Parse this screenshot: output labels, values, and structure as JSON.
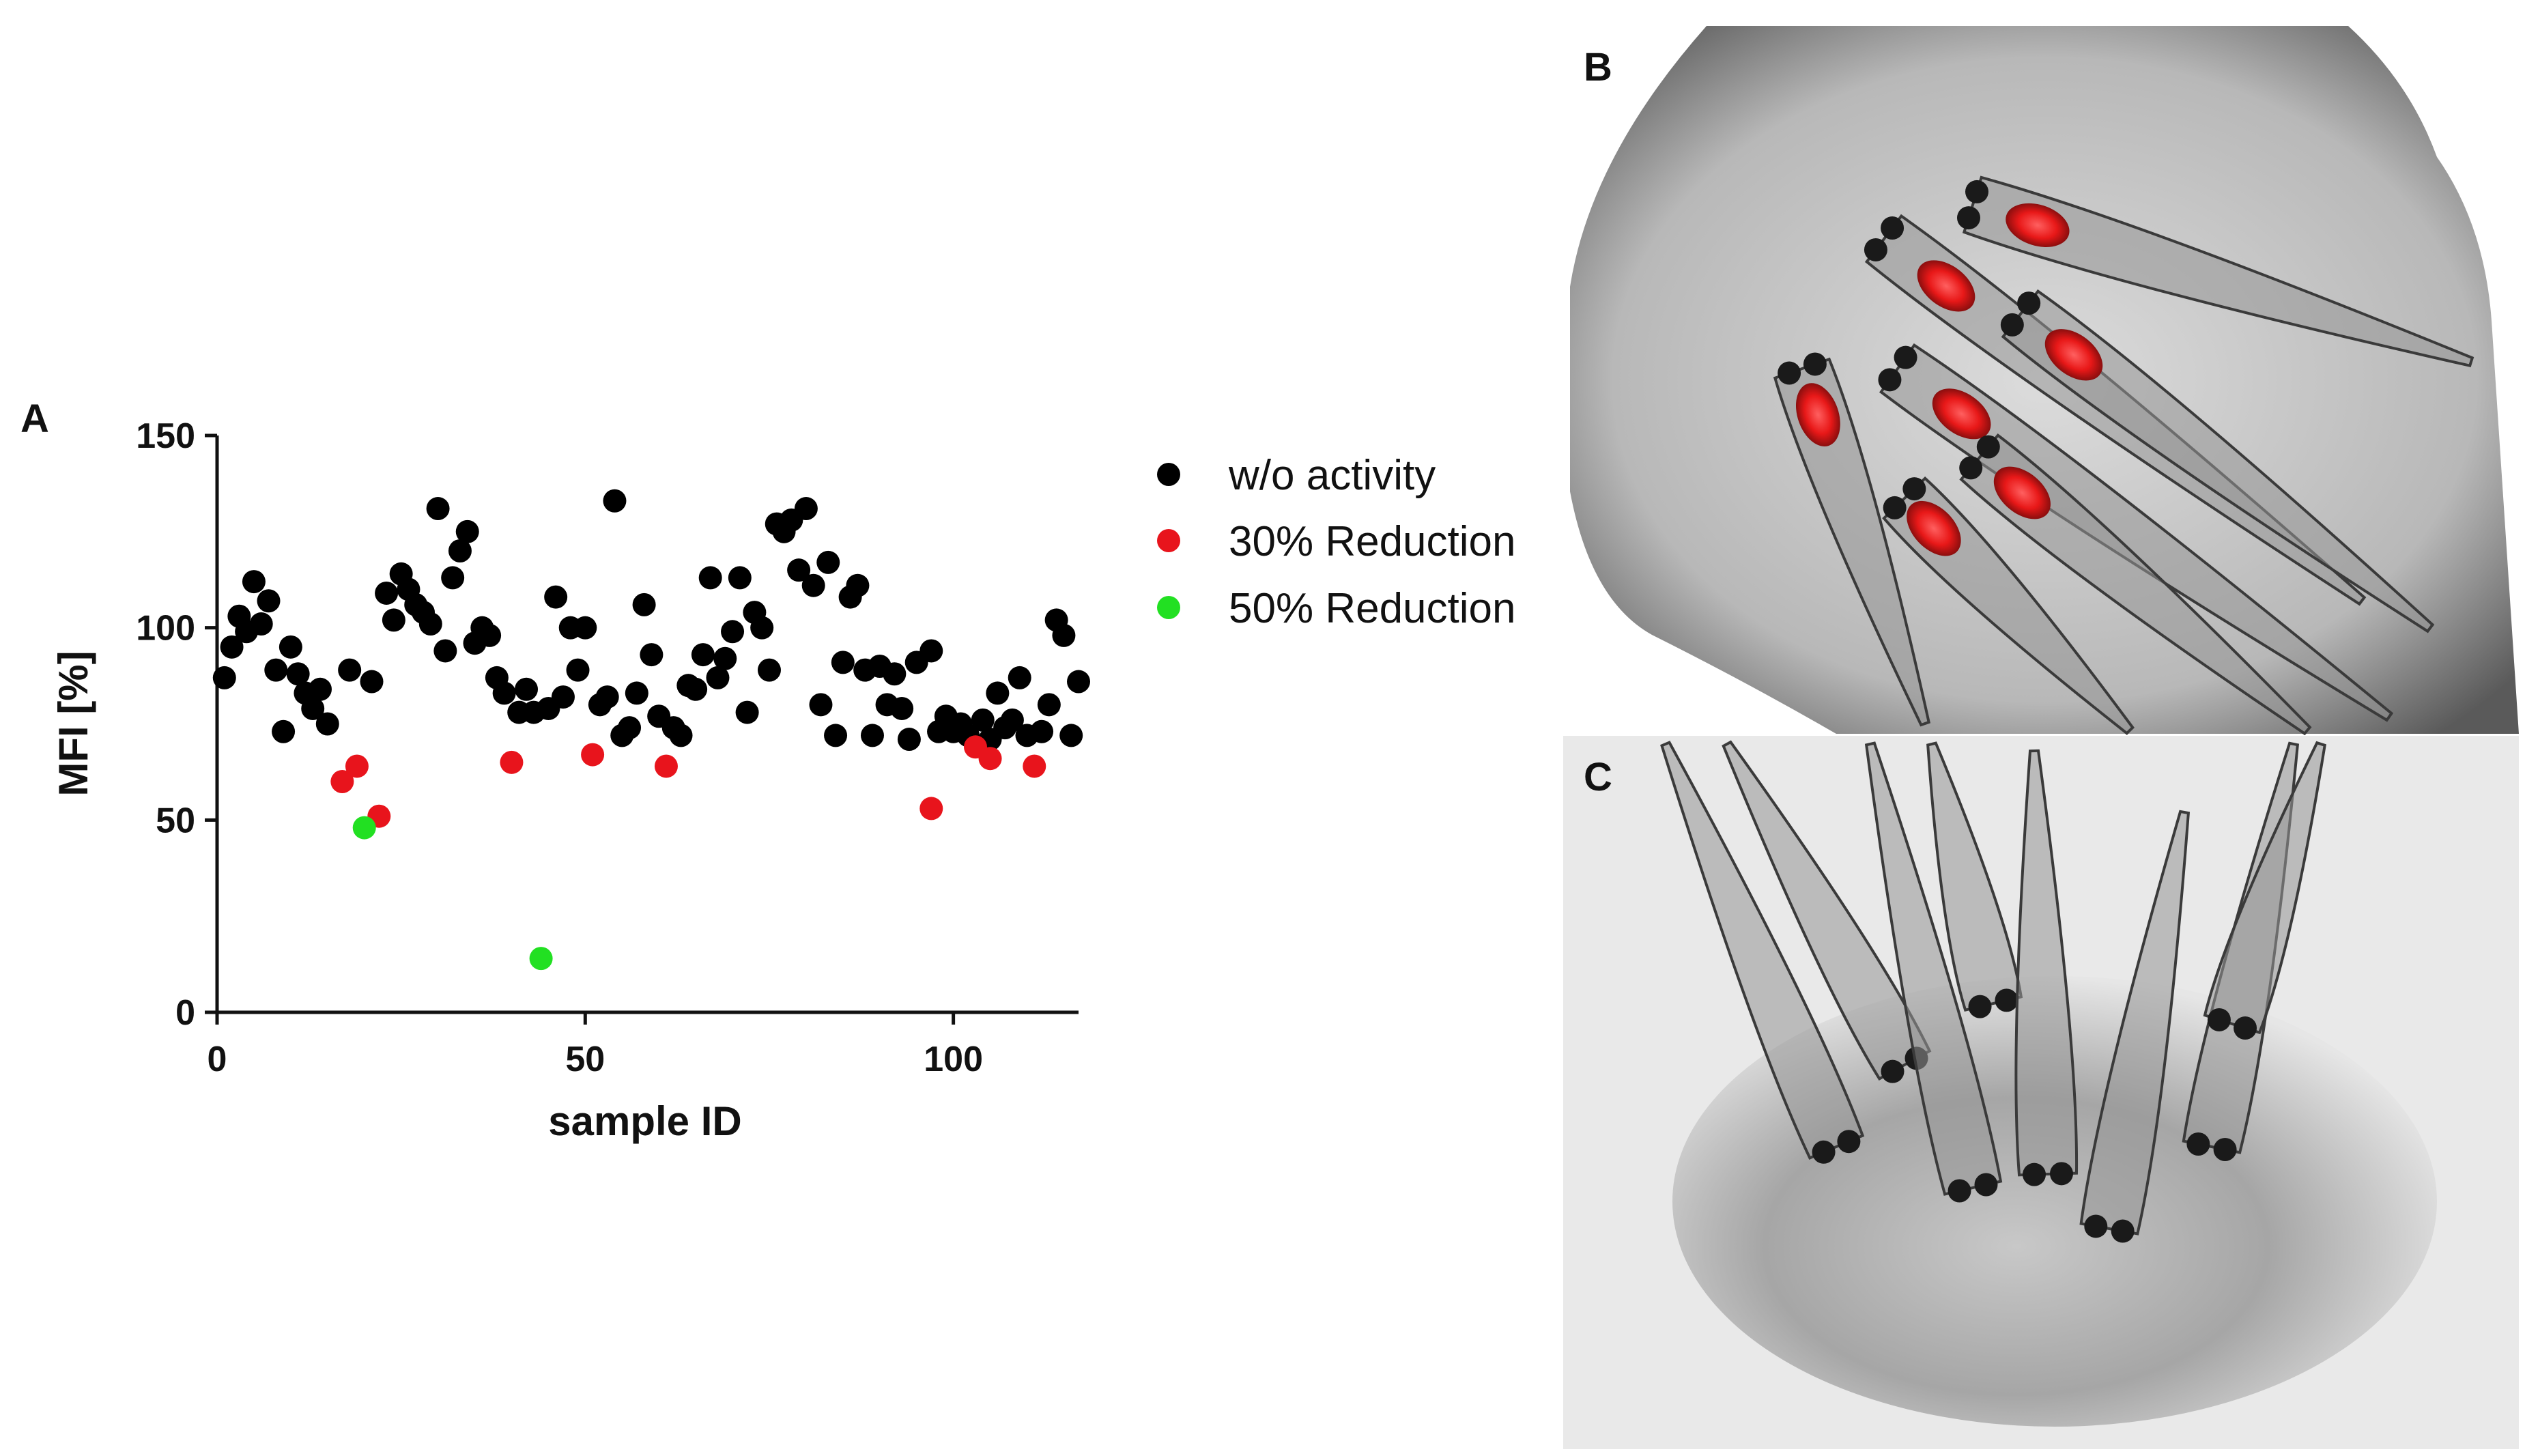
{
  "panels": {
    "a": "A",
    "b": "B",
    "c": "C"
  },
  "chart_data": {
    "type": "scatter",
    "xlabel": "sample ID",
    "ylabel": "MFI [%]",
    "xlim": [
      0,
      117
    ],
    "ylim": [
      0,
      150
    ],
    "x_ticks": [
      0,
      50,
      100
    ],
    "y_ticks": [
      0,
      50,
      100,
      150
    ],
    "grid": false,
    "legend_position": "right",
    "series": [
      {
        "name": "w/o activity",
        "color": "#000000",
        "points": [
          [
            1,
            87
          ],
          [
            2,
            95
          ],
          [
            3,
            103
          ],
          [
            4,
            99
          ],
          [
            5,
            112
          ],
          [
            6,
            101
          ],
          [
            7,
            107
          ],
          [
            8,
            89
          ],
          [
            9,
            73
          ],
          [
            10,
            95
          ],
          [
            11,
            88
          ],
          [
            12,
            83
          ],
          [
            13,
            79
          ],
          [
            14,
            84
          ],
          [
            15,
            75
          ],
          [
            18,
            89
          ],
          [
            21,
            86
          ],
          [
            23,
            109
          ],
          [
            24,
            102
          ],
          [
            25,
            114
          ],
          [
            26,
            110
          ],
          [
            27,
            106
          ],
          [
            28,
            104
          ],
          [
            29,
            101
          ],
          [
            30,
            131
          ],
          [
            31,
            94
          ],
          [
            32,
            113
          ],
          [
            33,
            120
          ],
          [
            34,
            125
          ],
          [
            35,
            96
          ],
          [
            36,
            100
          ],
          [
            37,
            98
          ],
          [
            38,
            87
          ],
          [
            39,
            83
          ],
          [
            41,
            78
          ],
          [
            42,
            84
          ],
          [
            43,
            78
          ],
          [
            45,
            79
          ],
          [
            46,
            108
          ],
          [
            47,
            82
          ],
          [
            48,
            100
          ],
          [
            49,
            89
          ],
          [
            50,
            100
          ],
          [
            52,
            80
          ],
          [
            53,
            82
          ],
          [
            54,
            133
          ],
          [
            55,
            72
          ],
          [
            56,
            74
          ],
          [
            57,
            83
          ],
          [
            58,
            106
          ],
          [
            59,
            93
          ],
          [
            60,
            77
          ],
          [
            62,
            74
          ],
          [
            63,
            72
          ],
          [
            64,
            85
          ],
          [
            65,
            84
          ],
          [
            66,
            93
          ],
          [
            67,
            113
          ],
          [
            68,
            87
          ],
          [
            69,
            92
          ],
          [
            70,
            99
          ],
          [
            71,
            113
          ],
          [
            72,
            78
          ],
          [
            73,
            104
          ],
          [
            74,
            100
          ],
          [
            75,
            89
          ],
          [
            76,
            127
          ],
          [
            77,
            125
          ],
          [
            78,
            128
          ],
          [
            79,
            115
          ],
          [
            80,
            131
          ],
          [
            81,
            111
          ],
          [
            82,
            80
          ],
          [
            83,
            117
          ],
          [
            84,
            72
          ],
          [
            85,
            91
          ],
          [
            86,
            108
          ],
          [
            87,
            111
          ],
          [
            88,
            89
          ],
          [
            89,
            72
          ],
          [
            90,
            90
          ],
          [
            91,
            80
          ],
          [
            92,
            88
          ],
          [
            93,
            79
          ],
          [
            94,
            71
          ],
          [
            95,
            91
          ],
          [
            97,
            94
          ],
          [
            98,
            73
          ],
          [
            99,
            77
          ],
          [
            100,
            73
          ],
          [
            101,
            75
          ],
          [
            102,
            72
          ],
          [
            104,
            76
          ],
          [
            105,
            71
          ],
          [
            106,
            83
          ],
          [
            107,
            74
          ],
          [
            108,
            76
          ],
          [
            109,
            87
          ],
          [
            110,
            72
          ],
          [
            112,
            73
          ],
          [
            113,
            80
          ],
          [
            114,
            102
          ],
          [
            115,
            98
          ],
          [
            116,
            72
          ],
          [
            117,
            86
          ]
        ]
      },
      {
        "name": "30% Reduction",
        "color": "#e8141c",
        "points": [
          [
            17,
            60
          ],
          [
            19,
            64
          ],
          [
            22,
            51
          ],
          [
            40,
            65
          ],
          [
            51,
            67
          ],
          [
            61,
            64
          ],
          [
            97,
            53
          ],
          [
            103,
            69
          ],
          [
            105,
            66
          ],
          [
            111,
            64
          ]
        ]
      },
      {
        "name": "50% Reduction",
        "color": "#22e022",
        "points": [
          [
            20,
            48
          ],
          [
            44,
            14
          ]
        ]
      }
    ]
  },
  "image_b": {
    "description_icon": "zebrafish-larvae-fluorescence-micrograph"
  },
  "image_c": {
    "description_icon": "zebrafish-larvae-brightfield-micrograph"
  }
}
